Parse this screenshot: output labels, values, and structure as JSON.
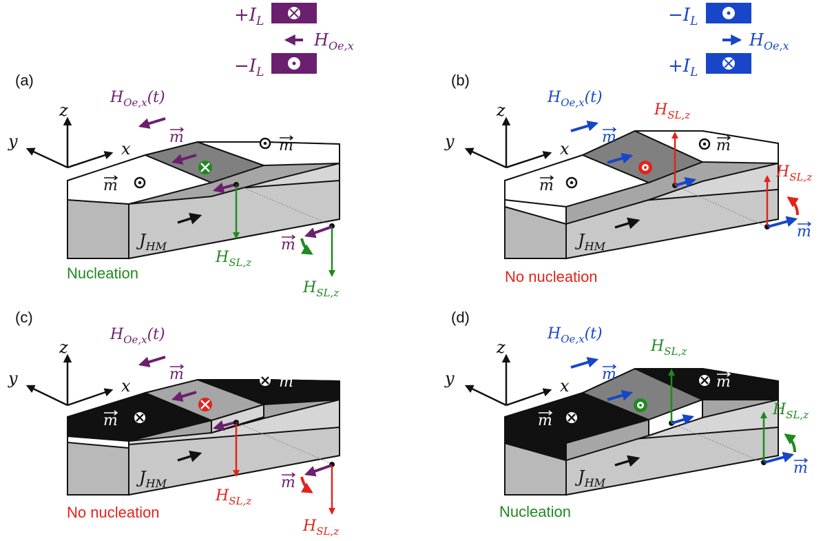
{
  "legend_left": {
    "top_label": "+I",
    "top_sub": "L",
    "field_label": "H",
    "field_sub": "Oe,x",
    "bottom_label": "−I",
    "bottom_sub": "L"
  },
  "legend_right": {
    "top_label": "−I",
    "top_sub": "L",
    "field_label": "H",
    "field_sub": "Oe,x",
    "bottom_label": "+I",
    "bottom_sub": "L"
  },
  "axis": {
    "x": "x",
    "y": "y",
    "z": "z"
  },
  "common": {
    "oe_field": "H",
    "oe_sub": "Oe,x",
    "oe_time": "(t)",
    "m": "m",
    "j": "J",
    "j_sub": "HM",
    "hsl": "H",
    "hsl_sub": "SL,z"
  },
  "panels": [
    {
      "tag": "(a)",
      "result": "Nucleation"
    },
    {
      "tag": "(b)",
      "result": "No nucleation"
    },
    {
      "tag": "(c)",
      "result": "No nucleation"
    },
    {
      "tag": "(d)",
      "result": "Nucleation"
    }
  ],
  "colors": {
    "purple": "#6B1F6F",
    "blue": "#1746C8",
    "red": "#E2231A",
    "green": "#1E8A1E",
    "black": "#111111",
    "gray_dark": "#808080",
    "gray_mid": "#A6A6A6",
    "gray_light": "#D6D6D6"
  }
}
